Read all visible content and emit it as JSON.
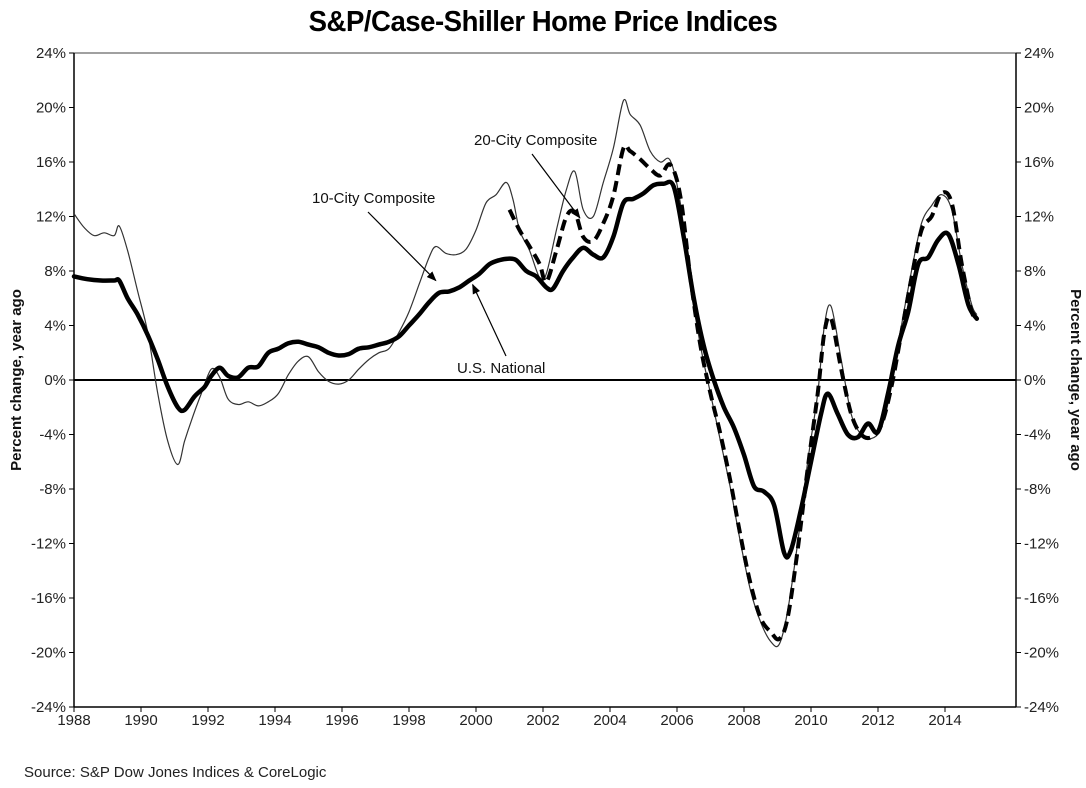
{
  "chart_data": {
    "type": "line",
    "title": "S&P/Case-Shiller Home Price Indices",
    "xlabel": "",
    "ylabel": "Percent change, year ago",
    "ylabel_right": "Percent change, year ago",
    "xlim": [
      1988,
      2015.1
    ],
    "ylim": [
      -24,
      24
    ],
    "x_ticks": [
      1988,
      1990,
      1992,
      1994,
      1996,
      1998,
      2000,
      2002,
      2004,
      2006,
      2008,
      2010,
      2012,
      2014
    ],
    "x_tick_labels": [
      "1988",
      "1990",
      "1992",
      "1994",
      "1996",
      "1998",
      "2000",
      "2002",
      "2004",
      "2006",
      "2008",
      "2010",
      "2012",
      "2014"
    ],
    "y_ticks": [
      24,
      20,
      16,
      12,
      8,
      4,
      0,
      -4,
      -8,
      -12,
      -16,
      -20,
      -24
    ],
    "y_tick_labels": [
      "24%",
      "20%",
      "16%",
      "12%",
      "8%",
      "4%",
      "0%",
      "-4%",
      "-8%",
      "-12%",
      "-16%",
      "-20%",
      "-24%"
    ],
    "grid": false,
    "legend": "none (inline annotations)",
    "source": "Source: S&P Dow Jones Indices & CoreLogic",
    "series": [
      {
        "name": "10-City Composite",
        "style": "thin",
        "x": [
          1988.0,
          1988.3,
          1988.6,
          1988.9,
          1989.2,
          1989.35,
          1989.6,
          1989.9,
          1990.2,
          1990.5,
          1990.8,
          1991.1,
          1991.3,
          1991.5,
          1991.8,
          1992.1,
          1992.35,
          1992.6,
          1992.9,
          1993.2,
          1993.5,
          1993.8,
          1994.1,
          1994.4,
          1994.7,
          1995.0,
          1995.3,
          1995.6,
          1995.9,
          1996.2,
          1996.5,
          1996.8,
          1997.1,
          1997.4,
          1997.7,
          1998.0,
          1998.3,
          1998.6,
          1998.8,
          1999.1,
          1999.4,
          1999.7,
          2000.0,
          2000.3,
          2000.6,
          2000.9,
          2001.1,
          2001.3,
          2001.6,
          2001.9,
          2002.1,
          2002.4,
          2002.7,
          2002.95,
          2003.2,
          2003.5,
          2003.8,
          2004.1,
          2004.4,
          2004.6,
          2004.9,
          2005.2,
          2005.5,
          2005.8,
          2006.1,
          2006.4,
          2006.7,
          2007.0,
          2007.3,
          2007.6,
          2007.9,
          2008.2,
          2008.5,
          2008.8,
          2009.05,
          2009.3,
          2009.6,
          2009.9,
          2010.2,
          2010.4,
          2010.6,
          2010.9,
          2011.2,
          2011.5,
          2011.8,
          2012.1,
          2012.4,
          2012.7,
          2013.0,
          2013.3,
          2013.6,
          2013.9,
          2014.2,
          2014.5,
          2014.8,
          2014.95
        ],
        "values": [
          12.2,
          11.2,
          10.6,
          10.8,
          10.6,
          11.3,
          9.5,
          6.5,
          3.5,
          -1.0,
          -4.5,
          -6.2,
          -4.5,
          -3.0,
          -1.0,
          0.8,
          0.2,
          -1.4,
          -1.8,
          -1.6,
          -1.9,
          -1.6,
          -1.0,
          0.4,
          1.4,
          1.7,
          0.6,
          -0.1,
          -0.3,
          0.0,
          0.8,
          1.5,
          2.0,
          2.3,
          3.5,
          5.0,
          7.0,
          9.0,
          9.8,
          9.3,
          9.2,
          9.6,
          11.0,
          13.0,
          13.6,
          14.5,
          13.3,
          11.0,
          9.5,
          7.5,
          7.8,
          11.0,
          14.0,
          15.3,
          12.5,
          12.0,
          14.5,
          17.0,
          20.5,
          19.5,
          18.7,
          16.8,
          16.0,
          16.1,
          13.0,
          7.0,
          2.5,
          -1.0,
          -4.5,
          -8.0,
          -12.0,
          -15.5,
          -17.8,
          -19.2,
          -19.4,
          -17.0,
          -12.0,
          -6.0,
          -1.0,
          4.0,
          5.4,
          1.5,
          -2.5,
          -4.0,
          -4.3,
          -3.5,
          -0.5,
          4.0,
          8.0,
          11.5,
          12.8,
          13.6,
          12.5,
          8.5,
          5.5,
          4.8
        ]
      },
      {
        "name": "20-City Composite",
        "style": "dashed",
        "x": [
          2001.0,
          2001.3,
          2001.6,
          2001.9,
          2002.1,
          2002.4,
          2002.7,
          2002.95,
          2003.2,
          2003.5,
          2003.8,
          2004.1,
          2004.4,
          2004.6,
          2004.9,
          2005.2,
          2005.5,
          2005.8,
          2006.1,
          2006.4,
          2006.7,
          2007.0,
          2007.3,
          2007.6,
          2007.9,
          2008.2,
          2008.5,
          2008.8,
          2009.05,
          2009.3,
          2009.6,
          2009.9,
          2010.2,
          2010.4,
          2010.6,
          2010.9,
          2011.2,
          2011.5,
          2011.8,
          2012.1,
          2012.4,
          2012.7,
          2013.0,
          2013.3,
          2013.6,
          2013.9,
          2014.2,
          2014.5,
          2014.8,
          2014.95
        ],
        "values": [
          12.5,
          11.0,
          9.8,
          8.5,
          7.2,
          9.5,
          12.0,
          12.3,
          10.5,
          10.2,
          11.5,
          13.5,
          17.0,
          16.8,
          16.2,
          15.5,
          15.0,
          15.8,
          13.5,
          7.5,
          2.5,
          -1.0,
          -4.0,
          -7.5,
          -11.5,
          -15.0,
          -17.5,
          -18.5,
          -19.0,
          -17.5,
          -12.5,
          -6.5,
          -1.0,
          3.5,
          4.5,
          0.8,
          -2.5,
          -4.0,
          -4.2,
          -3.3,
          -0.5,
          3.5,
          7.5,
          11.0,
          12.0,
          13.7,
          13.0,
          8.5,
          5.0,
          4.6
        ]
      },
      {
        "name": "U.S. National",
        "style": "thick",
        "x": [
          1988.0,
          1988.4,
          1988.8,
          1989.2,
          1989.35,
          1989.6,
          1989.9,
          1990.2,
          1990.5,
          1990.8,
          1991.1,
          1991.3,
          1991.6,
          1991.9,
          1992.1,
          1992.35,
          1992.6,
          1992.9,
          1993.2,
          1993.5,
          1993.8,
          1994.1,
          1994.4,
          1994.7,
          1995.0,
          1995.3,
          1995.6,
          1995.9,
          1996.2,
          1996.5,
          1996.8,
          1997.1,
          1997.4,
          1997.7,
          1998.0,
          1998.3,
          1998.6,
          1998.9,
          1999.2,
          1999.5,
          1999.8,
          2000.1,
          2000.4,
          2000.7,
          2000.95,
          2001.2,
          2001.5,
          2001.8,
          2002.1,
          2002.3,
          2002.6,
          2002.9,
          2003.2,
          2003.5,
          2003.8,
          2004.1,
          2004.4,
          2004.7,
          2005.0,
          2005.3,
          2005.6,
          2005.9,
          2006.2,
          2006.5,
          2006.8,
          2007.1,
          2007.4,
          2007.7,
          2008.0,
          2008.3,
          2008.6,
          2008.9,
          2009.2,
          2009.4,
          2009.7,
          2010.0,
          2010.3,
          2010.5,
          2010.8,
          2011.1,
          2011.4,
          2011.7,
          2012.0,
          2012.3,
          2012.6,
          2012.9,
          2013.2,
          2013.5,
          2013.8,
          2014.1,
          2014.4,
          2014.7,
          2014.95
        ],
        "values": [
          7.6,
          7.4,
          7.3,
          7.3,
          7.3,
          6.0,
          4.8,
          3.3,
          1.5,
          -0.5,
          -2.0,
          -2.2,
          -1.2,
          -0.5,
          0.3,
          0.9,
          0.3,
          0.2,
          0.9,
          1.0,
          2.0,
          2.3,
          2.7,
          2.8,
          2.6,
          2.4,
          2.0,
          1.8,
          1.9,
          2.3,
          2.4,
          2.6,
          2.8,
          3.2,
          4.0,
          4.8,
          5.7,
          6.4,
          6.5,
          6.8,
          7.3,
          7.8,
          8.5,
          8.8,
          8.9,
          8.8,
          8.0,
          7.6,
          6.8,
          6.7,
          8.0,
          9.0,
          9.7,
          9.2,
          9.0,
          10.5,
          13.0,
          13.3,
          13.7,
          14.3,
          14.4,
          14.2,
          10.5,
          6.0,
          2.5,
          0.0,
          -2.0,
          -3.5,
          -5.5,
          -7.8,
          -8.2,
          -9.2,
          -12.7,
          -12.5,
          -9.5,
          -6.0,
          -2.5,
          -1.0,
          -2.5,
          -4.0,
          -4.2,
          -3.2,
          -3.8,
          -1.0,
          2.5,
          5.0,
          8.5,
          9.0,
          10.3,
          10.7,
          8.5,
          5.5,
          4.5
        ]
      }
    ],
    "annotations": [
      {
        "text": "10-City Composite",
        "target_series": "10-City Composite",
        "arrow_to": [
          1998.8,
          7.3
        ]
      },
      {
        "text": "20-City Composite",
        "target_series": "20-City Composite",
        "arrow_to": [
          2003.1,
          11.9
        ]
      },
      {
        "text": "U.S. National",
        "target_series": "U.S. National",
        "arrow_to": [
          1999.9,
          7.0
        ]
      }
    ]
  }
}
